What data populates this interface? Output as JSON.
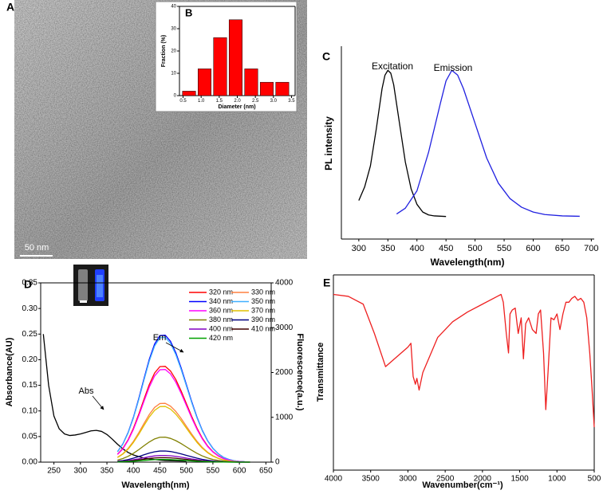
{
  "figure": {
    "panel_label": "A",
    "scale_bar": "50 nm"
  },
  "chart_data": [
    {
      "type": "histogram",
      "label": "B",
      "xlabel": "Diameter (nm)",
      "ylabel": "Fraction (%)",
      "bins": [
        0.45,
        0.88,
        1.31,
        1.74,
        2.17,
        2.6,
        3.03,
        3.46
      ],
      "counts": [
        2,
        12,
        26,
        34,
        12,
        6,
        6
      ],
      "color": "#ff0000",
      "xlim": [
        0.4,
        3.6
      ],
      "ylim": [
        0,
        40
      ],
      "xticks": [
        0.5,
        {
          "value": 1,
          "label": "1.0"
        },
        1.5,
        {
          "value": 2,
          "label": "2.0"
        },
        2.5,
        {
          "value": 3,
          "label": "3.0"
        },
        3.5
      ],
      "yticks": [
        0,
        10,
        20,
        30,
        40
      ]
    },
    {
      "type": "line",
      "label": "C",
      "xlabel": "Wavelength(nm)",
      "ylabel": "PL intensity",
      "xlim": [
        270,
        705
      ],
      "ylim": [
        0,
        1
      ],
      "xticks": [
        300,
        350,
        400,
        450,
        500,
        550,
        600,
        650,
        700
      ],
      "series": [
        {
          "name": "Excitation",
          "color": "#000000",
          "x": [
            300,
            310,
            320,
            330,
            340,
            345,
            350,
            355,
            360,
            370,
            380,
            390,
            400,
            410,
            420,
            430,
            450
          ],
          "values": [
            0.2,
            0.27,
            0.38,
            0.57,
            0.78,
            0.85,
            0.875,
            0.86,
            0.8,
            0.6,
            0.4,
            0.26,
            0.18,
            0.14,
            0.125,
            0.12,
            0.117
          ]
        },
        {
          "name": "Emission",
          "color": "#2020e0",
          "x": [
            365,
            380,
            400,
            420,
            440,
            450,
            460,
            470,
            480,
            500,
            520,
            540,
            560,
            580,
            600,
            620,
            650,
            680
          ],
          "values": [
            0.13,
            0.16,
            0.25,
            0.45,
            0.7,
            0.82,
            0.875,
            0.85,
            0.78,
            0.6,
            0.42,
            0.29,
            0.21,
            0.165,
            0.14,
            0.127,
            0.12,
            0.118
          ]
        }
      ]
    },
    {
      "type": "line",
      "label": "D",
      "xlabel": "Wavelength(nm)",
      "ylabel": "Absorbance(AU)",
      "y2label": "Fluorescence(a.u.)",
      "xlim": [
        225,
        660
      ],
      "ylim": [
        0,
        0.35
      ],
      "y2lim": [
        0,
        4000
      ],
      "xticks": [
        250,
        300,
        350,
        400,
        450,
        500,
        550,
        600,
        650
      ],
      "yticks": [
        {
          "value": 0,
          "label": "0.00"
        },
        0.05,
        {
          "value": 0.1,
          "label": "0.10"
        },
        0.15,
        {
          "value": 0.2,
          "label": "0.20"
        },
        0.25,
        {
          "value": 0.3,
          "label": "0.30"
        },
        0.35
      ],
      "y2ticks": [
        0,
        1000,
        2000,
        3000,
        4000
      ],
      "legend": "upper right",
      "annotations": [
        {
          "text": "Em"
        },
        {
          "text": "Abs"
        }
      ],
      "x": [
        370,
        380,
        390,
        400,
        410,
        420,
        430,
        440,
        450,
        460,
        470,
        480,
        490,
        500,
        510,
        520,
        530,
        540,
        550,
        560,
        570,
        580,
        590,
        600,
        610,
        620
      ],
      "series": [
        {
          "color": "#000000",
          "x": [
            230,
            240,
            250,
            260,
            270,
            280,
            290,
            300,
            310,
            320,
            330,
            340,
            350,
            360,
            370,
            380,
            390,
            400,
            420,
            440,
            460,
            500
          ],
          "values": [
            0.25,
            0.15,
            0.09,
            0.065,
            0.055,
            0.052,
            0.053,
            0.055,
            0.058,
            0.061,
            0.062,
            0.06,
            0.054,
            0.045,
            0.035,
            0.026,
            0.019,
            0.014,
            0.008,
            0.005,
            0.003,
            0.002
          ]
        },
        {
          "name": "320 nm",
          "color": "#ff0000",
          "axis": "y2",
          "values": [
            176,
            305,
            499,
            755,
            1066,
            1406,
            1733,
            1989,
            2131,
            2137,
            2034,
            1843,
            1589,
            1305,
            1019,
            757,
            535,
            361,
            232,
            142,
            82,
            45,
            24,
            12,
            6,
            3
          ]
        },
        {
          "name": "330 nm",
          "color": "#ff8040",
          "axis": "y2",
          "values": [
            108,
            187,
            306,
            463,
            655,
            863,
            1064,
            1221,
            1308,
            1312,
            1249,
            1131,
            975,
            801,
            626,
            465,
            329,
            222,
            143,
            87,
            50,
            28,
            15,
            7,
            4,
            2
          ]
        },
        {
          "name": "340 nm",
          "color": "#0000ff",
          "axis": "y2",
          "values": [
            234,
            405,
            661,
            1000,
            1414,
            1864,
            2297,
            2636,
            2824,
            2833,
            2696,
            2442,
            2106,
            1730,
            1351,
            1003,
            710,
            479,
            308,
            188,
            108,
            60,
            31,
            16,
            8,
            3
          ]
        },
        {
          "name": "350 nm",
          "color": "#40b0ff",
          "axis": "y2",
          "values": [
            230,
            398,
            650,
            983,
            1389,
            1831,
            2257,
            2590,
            2775,
            2783,
            2649,
            2400,
            2069,
            1700,
            1327,
            986,
            697,
            470,
            302,
            185,
            106,
            59,
            31,
            16,
            8,
            3
          ]
        },
        {
          "name": "360 nm",
          "color": "#ff00ff",
          "axis": "y2",
          "values": [
            171,
            295,
            483,
            730,
            1032,
            1360,
            1676,
            1924,
            2061,
            2068,
            1968,
            1783,
            1537,
            1263,
            986,
            732,
            518,
            349,
            225,
            137,
            79,
            44,
            23,
            12,
            6,
            2
          ]
        },
        {
          "name": "370 nm",
          "color": "#e0c000",
          "axis": "y2",
          "values": [
            103,
            178,
            290,
            439,
            620,
            818,
            1008,
            1156,
            1239,
            1243,
            1183,
            1071,
            924,
            759,
            593,
            440,
            311,
            210,
            135,
            83,
            48,
            26,
            14,
            7,
            3,
            2
          ]
        },
        {
          "name": "380 nm",
          "color": "#808000",
          "axis": "y2",
          "values": [
            46,
            80,
            130,
            197,
            278,
            366,
            451,
            518,
            555,
            557,
            530,
            480,
            414,
            340,
            265,
            197,
            139,
            94,
            60,
            37,
            21,
            12,
            6,
            3,
            2,
            1
          ]
        },
        {
          "name": "390 nm",
          "color": "#000080",
          "axis": "y2",
          "values": [
            21,
            36,
            58,
            88,
            124,
            164,
            202,
            231,
            248,
            249,
            237,
            214,
            185,
            152,
            119,
            88,
            62,
            42,
            27,
            17,
            10,
            5,
            3,
            1,
            1,
            0
          ]
        },
        {
          "name": "400 nm",
          "color": "#8000c0",
          "axis": "y2",
          "values": [
            12,
            21,
            35,
            53,
            74,
            98,
            121,
            139,
            149,
            149,
            142,
            129,
            111,
            91,
            71,
            53,
            37,
            25,
            16,
            10,
            6,
            3,
            2,
            1,
            0,
            0
          ]
        },
        {
          "name": "410 nm",
          "color": "#400000",
          "axis": "y2",
          "values": [
            8,
            14,
            23,
            35,
            50,
            65,
            81,
            93,
            99,
            99,
            95,
            86,
            74,
            61,
            47,
            35,
            25,
            17,
            11,
            7,
            4,
            2,
            1,
            1,
            0,
            0
          ]
        },
        {
          "name": "420 nm",
          "color": "#00a000",
          "axis": "y2",
          "values": [
            5,
            9,
            14,
            21,
            30,
            39,
            48,
            56,
            59,
            60,
            57,
            51,
            44,
            36,
            28,
            21,
            15,
            10,
            6,
            4,
            2,
            1,
            1,
            0,
            0,
            0
          ]
        }
      ]
    },
    {
      "type": "line",
      "label": "E",
      "xlabel": "Wavenumber(cm⁻¹)",
      "ylabel": "Transmittance",
      "xlim": [
        4000,
        500
      ],
      "ylim": [
        0,
        1
      ],
      "xticks": [
        4000,
        3500,
        3000,
        2500,
        2000,
        1500,
        1000,
        500
      ],
      "series": [
        {
          "color": "#ee2020",
          "x": [
            4000,
            3800,
            3600,
            3450,
            3300,
            3150,
            3000,
            2960,
            2930,
            2900,
            2880,
            2850,
            2800,
            2600,
            2400,
            2200,
            2000,
            1800,
            1750,
            1720,
            1680,
            1650,
            1630,
            1600,
            1560,
            1520,
            1480,
            1450,
            1420,
            1380,
            1330,
            1280,
            1250,
            1220,
            1180,
            1150,
            1120,
            1080,
            1040,
            1000,
            960,
            920,
            880,
            840,
            800,
            760,
            720,
            680,
            640,
            600,
            560,
            530,
            500
          ],
          "values": [
            0.9,
            0.89,
            0.85,
            0.7,
            0.53,
            0.58,
            0.63,
            0.65,
            0.48,
            0.44,
            0.47,
            0.41,
            0.5,
            0.68,
            0.76,
            0.81,
            0.85,
            0.89,
            0.9,
            0.86,
            0.7,
            0.6,
            0.8,
            0.82,
            0.83,
            0.7,
            0.78,
            0.57,
            0.75,
            0.78,
            0.72,
            0.7,
            0.8,
            0.82,
            0.6,
            0.31,
            0.5,
            0.78,
            0.77,
            0.8,
            0.72,
            0.8,
            0.86,
            0.86,
            0.88,
            0.89,
            0.87,
            0.88,
            0.86,
            0.78,
            0.6,
            0.42,
            0.22
          ]
        }
      ]
    }
  ]
}
